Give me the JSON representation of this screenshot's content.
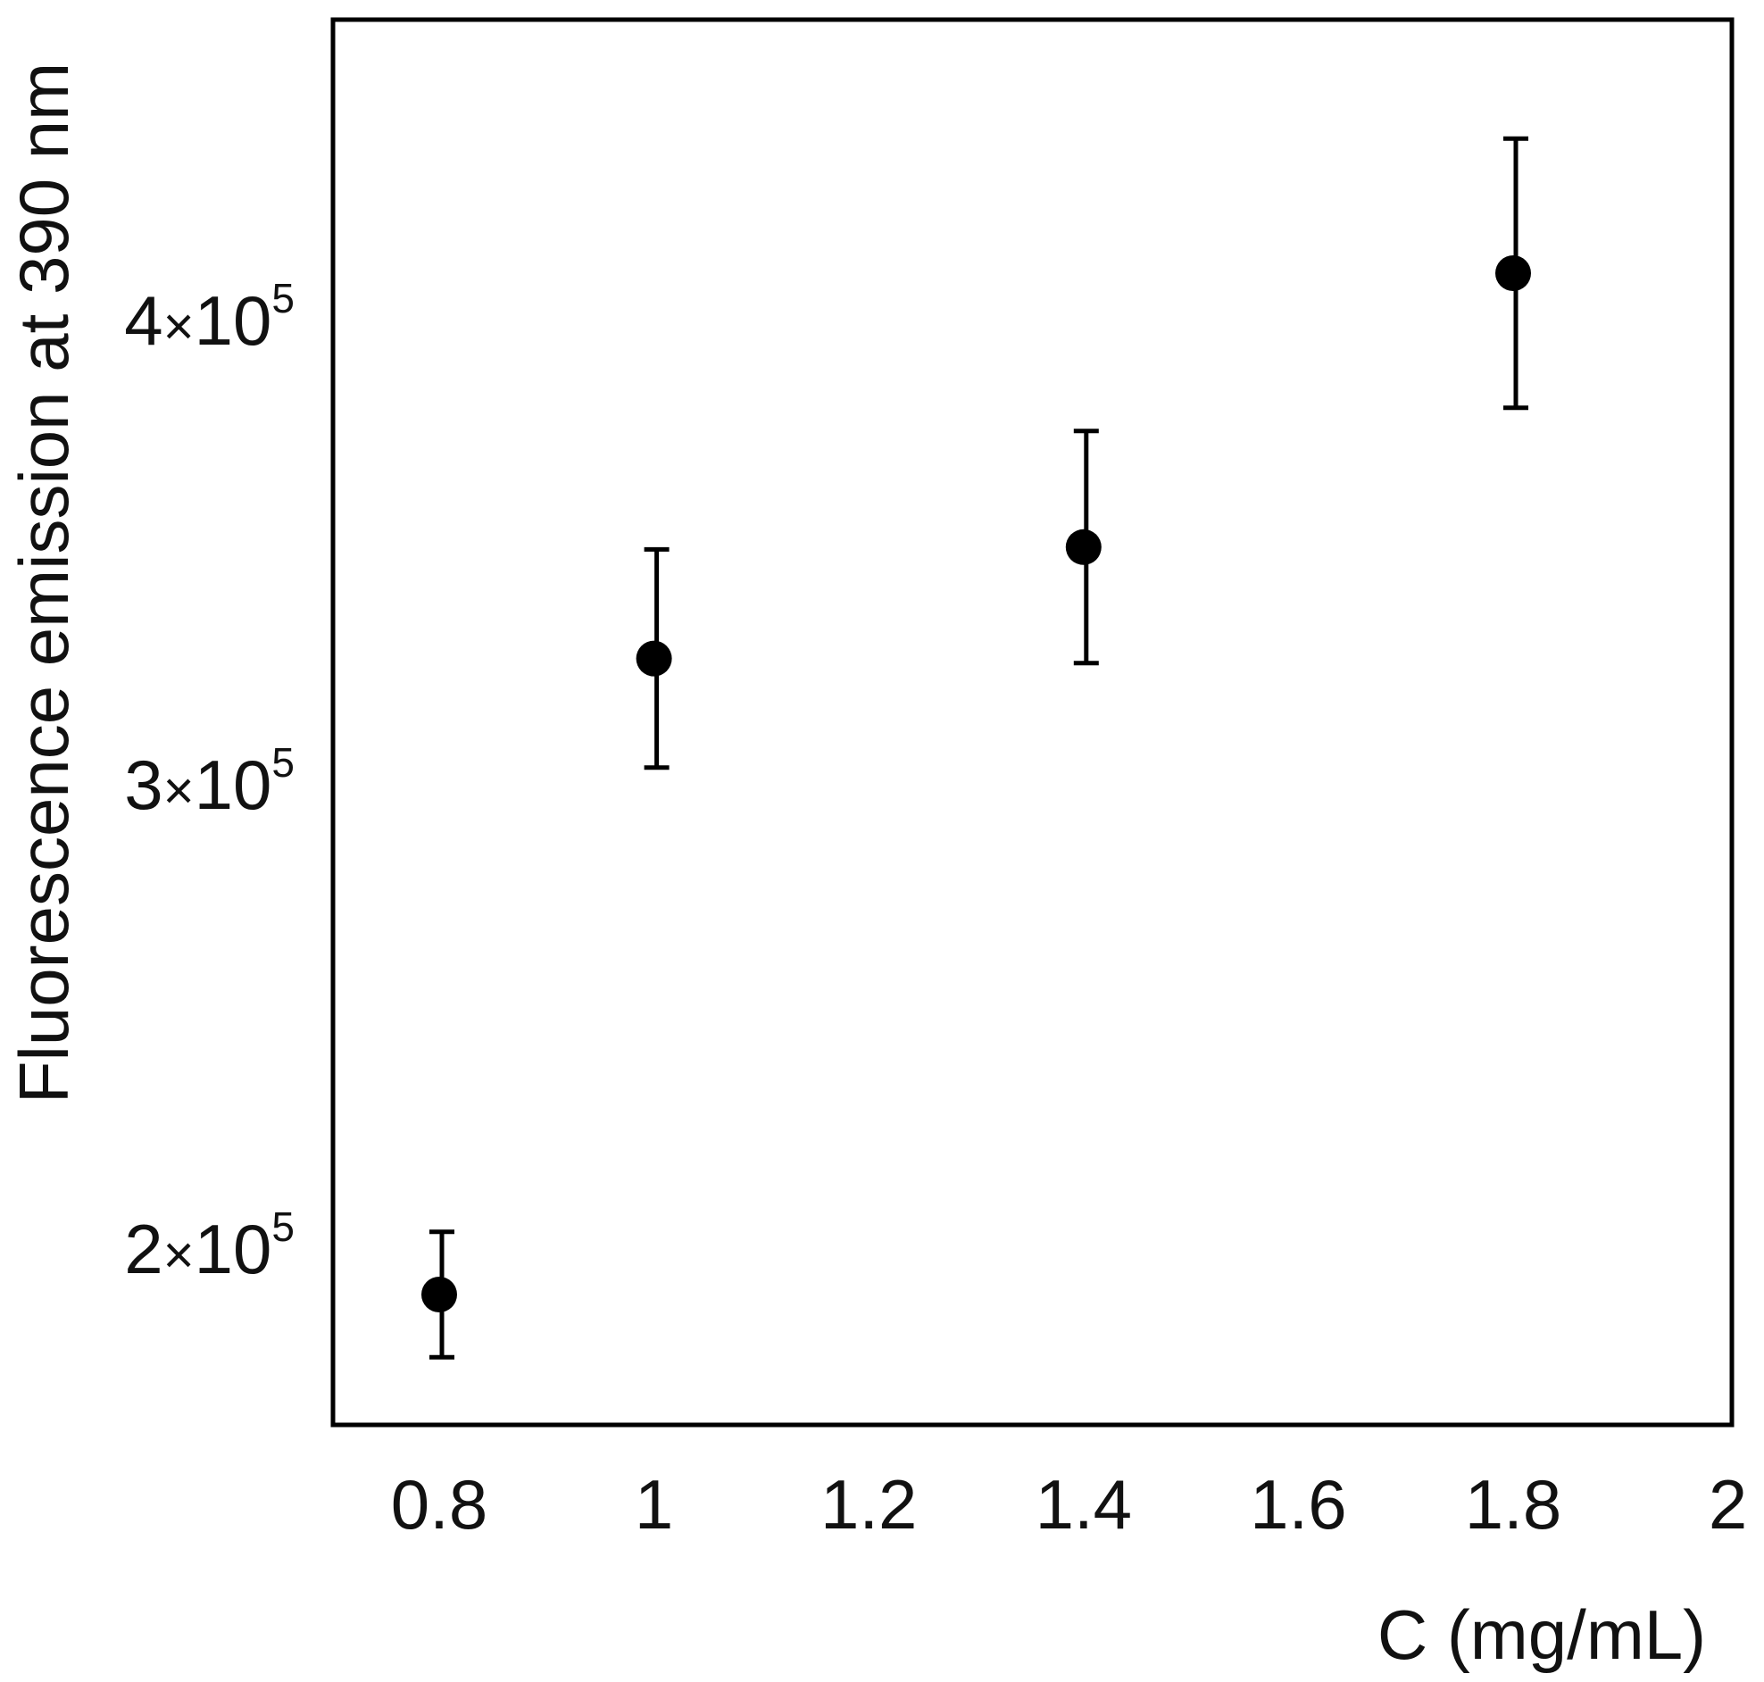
{
  "chart_data": {
    "type": "scatter",
    "title": "",
    "xlabel": "C (mg/mL)",
    "ylabel": "Fluorescence emission at 390 nm",
    "xlim": [
      0.7,
      2.0
    ],
    "ylim": [
      160000,
      460000
    ],
    "x_ticks": [
      0.8,
      1,
      1.2,
      1.4,
      1.6,
      1.8,
      2
    ],
    "x_tick_labels": [
      "0.8",
      "1",
      "1.2",
      "1.4",
      "1.6",
      "1.8",
      "2"
    ],
    "y_ticks": [
      200000,
      300000,
      400000
    ],
    "y_tick_labels": [
      {
        "mantissa": "2",
        "times": "×",
        "base": "10",
        "exp": "5"
      },
      {
        "mantissa": "3",
        "times": "×",
        "base": "10",
        "exp": "5"
      },
      {
        "mantissa": "4",
        "times": "×",
        "base": "10",
        "exp": "5"
      }
    ],
    "grid": false,
    "legend": null,
    "series": [
      {
        "name": "Fluorescence",
        "marker": "filled-circle",
        "color": "#000000",
        "x": [
          0.8,
          1.0,
          1.4,
          1.8
        ],
        "y": [
          190000,
          327000,
          351000,
          410000
        ],
        "y_err": [
          13500,
          23500,
          25000,
          29000
        ]
      }
    ]
  },
  "style": {
    "axis_color": "#000000",
    "text_color": "#111111",
    "background": "#ffffff"
  }
}
